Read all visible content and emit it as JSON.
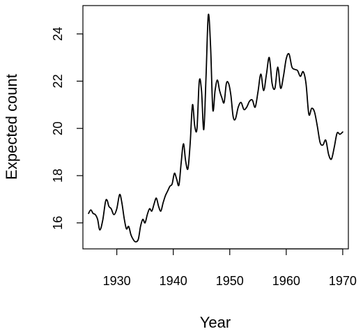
{
  "chart_data": {
    "type": "line",
    "title": "",
    "xlabel": "Year",
    "ylabel": "Expected count",
    "xlim": [
      1924,
      1971
    ],
    "ylim": [
      14.9,
      25.2
    ],
    "xticks": [
      1930,
      1940,
      1950,
      1960,
      1970
    ],
    "yticks": [
      16,
      18,
      20,
      22,
      24
    ],
    "grid": false,
    "line_color": "#000000",
    "series": [
      {
        "x": [
          1925.0,
          1925.4,
          1925.8,
          1926.2,
          1926.6,
          1927.0,
          1927.5,
          1928.0,
          1928.3,
          1928.6,
          1929.0,
          1929.5,
          1930.0,
          1930.5,
          1930.9,
          1931.3,
          1931.7,
          1932.1,
          1932.5,
          1932.9,
          1933.3,
          1933.8,
          1934.2,
          1934.6,
          1935.0,
          1935.4,
          1935.8,
          1936.2,
          1936.6,
          1937.0,
          1937.4,
          1937.8,
          1938.2,
          1938.6,
          1939.0,
          1939.4,
          1939.8,
          1940.2,
          1940.6,
          1941.0,
          1941.4,
          1941.8,
          1942.2,
          1942.6,
          1943.0,
          1943.4,
          1943.8,
          1944.2,
          1944.6,
          1945.0,
          1945.4,
          1945.8,
          1946.2,
          1946.6,
          1947.0,
          1947.4,
          1947.8,
          1948.2,
          1948.6,
          1949.0,
          1949.4,
          1949.8,
          1950.2,
          1950.6,
          1951.0,
          1951.5,
          1952.0,
          1952.5,
          1953.0,
          1953.5,
          1954.0,
          1954.5,
          1955.0,
          1955.5,
          1956.0,
          1956.5,
          1957.0,
          1957.5,
          1958.0,
          1958.5,
          1959.0,
          1959.5,
          1960.0,
          1960.5,
          1961.0,
          1961.5,
          1962.0,
          1962.5,
          1963.0,
          1963.5,
          1964.0,
          1964.5,
          1965.0,
          1965.5,
          1966.0,
          1966.5,
          1967.0,
          1967.5,
          1968.0,
          1968.5,
          1969.0,
          1969.5,
          1970.0
        ],
        "y": [
          16.4,
          16.55,
          16.4,
          16.35,
          16.15,
          15.7,
          16.1,
          16.9,
          16.95,
          16.7,
          16.6,
          16.35,
          16.6,
          17.2,
          16.85,
          16.2,
          15.75,
          15.85,
          15.5,
          15.3,
          15.2,
          15.3,
          15.85,
          16.15,
          16.0,
          16.35,
          16.6,
          16.5,
          16.8,
          17.05,
          16.7,
          16.5,
          16.85,
          17.15,
          17.35,
          17.55,
          17.65,
          18.1,
          17.85,
          17.6,
          18.55,
          19.35,
          18.6,
          18.3,
          19.4,
          21.0,
          20.1,
          20.0,
          22.0,
          21.6,
          19.95,
          22.2,
          24.8,
          23.5,
          20.8,
          21.6,
          22.05,
          21.6,
          21.3,
          21.1,
          21.9,
          21.9,
          21.4,
          20.5,
          20.4,
          20.9,
          21.1,
          20.8,
          20.9,
          21.15,
          21.2,
          20.9,
          21.55,
          22.3,
          21.6,
          22.3,
          23.0,
          21.9,
          21.7,
          22.6,
          21.7,
          22.2,
          22.95,
          23.15,
          22.6,
          22.5,
          22.45,
          22.2,
          22.4,
          21.9,
          20.6,
          20.85,
          20.7,
          20.1,
          19.4,
          19.3,
          19.5,
          18.9,
          18.7,
          19.2,
          19.8,
          19.75,
          19.85
        ]
      }
    ]
  }
}
